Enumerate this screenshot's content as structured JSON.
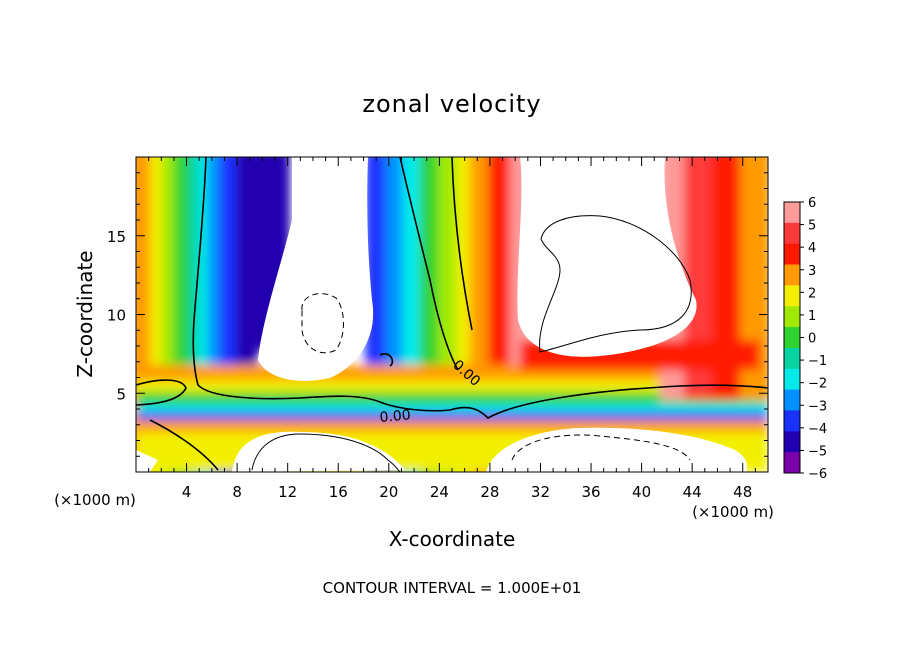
{
  "chart_data": {
    "type": "heatmap",
    "title": "zonal velocity",
    "xlabel": "X-coordinate",
    "ylabel": "Z-coordinate",
    "x_unit_label": "(×1000 m)",
    "footer": "CONTOUR INTERVAL = 1.000E+01",
    "x_ticks": [
      4,
      8,
      12,
      16,
      20,
      24,
      28,
      32,
      36,
      40,
      44,
      48
    ],
    "x_tick_labels": [
      "4",
      "8",
      "12",
      "16",
      "20",
      "24",
      "28",
      "32",
      "36",
      "40",
      "44",
      "48"
    ],
    "y_ticks": [
      5,
      10,
      15
    ],
    "y_tick_labels": [
      "5",
      "10",
      "15"
    ],
    "xlim": [
      0,
      50
    ],
    "ylim": [
      0,
      20
    ],
    "colorbar": {
      "values": [
        6,
        5,
        4,
        3,
        2,
        1,
        0,
        -1,
        -2,
        -3,
        -4,
        -5,
        -6
      ],
      "labels": [
        "6",
        "5",
        "4",
        "3",
        "2",
        "1",
        "0",
        "−1",
        "−2",
        "−3",
        "−4",
        "−5",
        "−6"
      ],
      "colors": [
        "#ff9a9a",
        "#ff3a3a",
        "#ff1a00",
        "#ff9a00",
        "#f2f000",
        "#a0ea00",
        "#30d230",
        "#00d2a0",
        "#00eaea",
        "#0090ff",
        "#1a32ff",
        "#2000b0",
        "#7a00aa"
      ]
    },
    "contour_labels": [
      "0.00",
      "0.00"
    ]
  }
}
